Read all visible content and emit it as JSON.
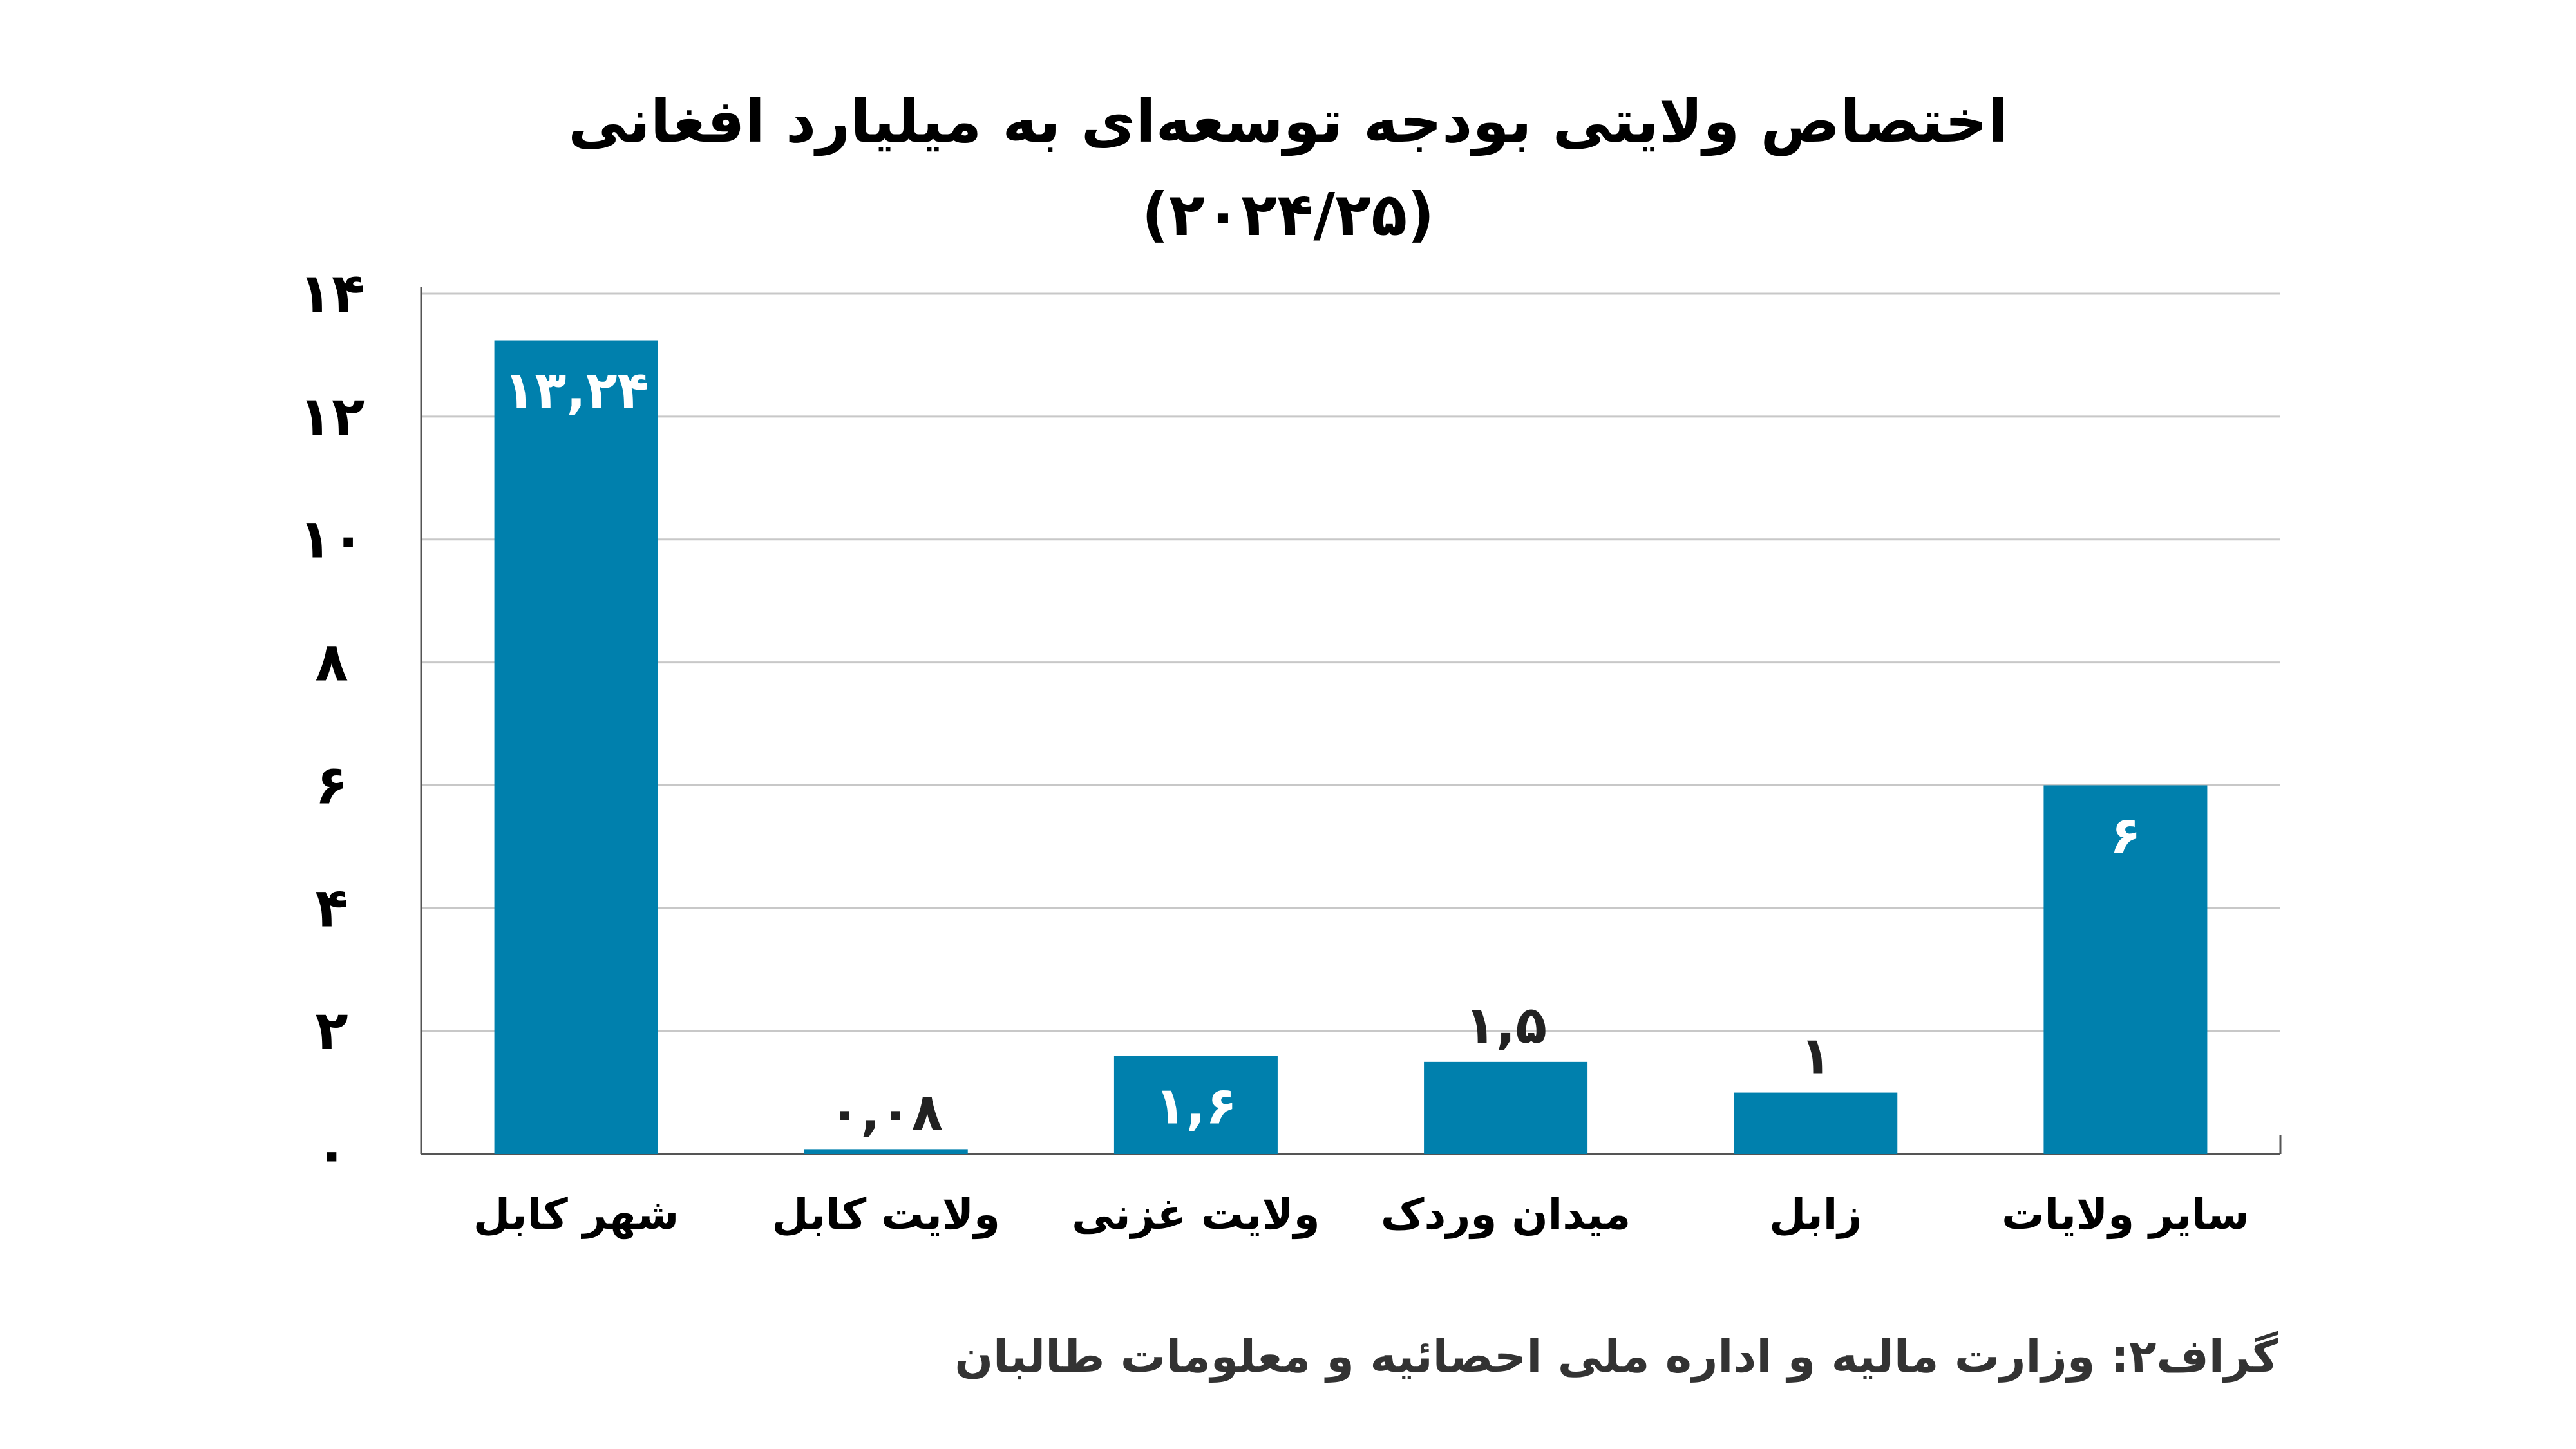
{
  "chart_data": {
    "type": "bar",
    "title": "اختصاص ولایتی بودجه توسعه‌ای به میلیارد افغانی",
    "subtitle": "(۲۰۲۴/۲۵)",
    "categories": [
      "شهر کابل",
      "ولایت کابل",
      "ولایت غزنی",
      "میدان وردک",
      "زابل",
      "سایر ولایات"
    ],
    "values": [
      13.24,
      0.08,
      1.6,
      1.5,
      1,
      6
    ],
    "value_labels": [
      "۱۳,۲۴",
      "۰,۰۸",
      "۱,۶",
      "۱,۵",
      "۱",
      "۶"
    ],
    "ylim": [
      0,
      14
    ],
    "yticks": [
      0,
      2,
      4,
      6,
      8,
      10,
      12,
      14
    ],
    "ytick_labels": [
      "۰",
      "۲",
      "۴",
      "۶",
      "۸",
      "۱۰",
      "۱۲",
      "۱۴"
    ],
    "xlabel": "",
    "ylabel": "",
    "grid": true,
    "bar_color": "#0080AD",
    "source": "گراف۲: وزارت مالیه و اداره ملی احصائیه و معلومات طالبان"
  }
}
